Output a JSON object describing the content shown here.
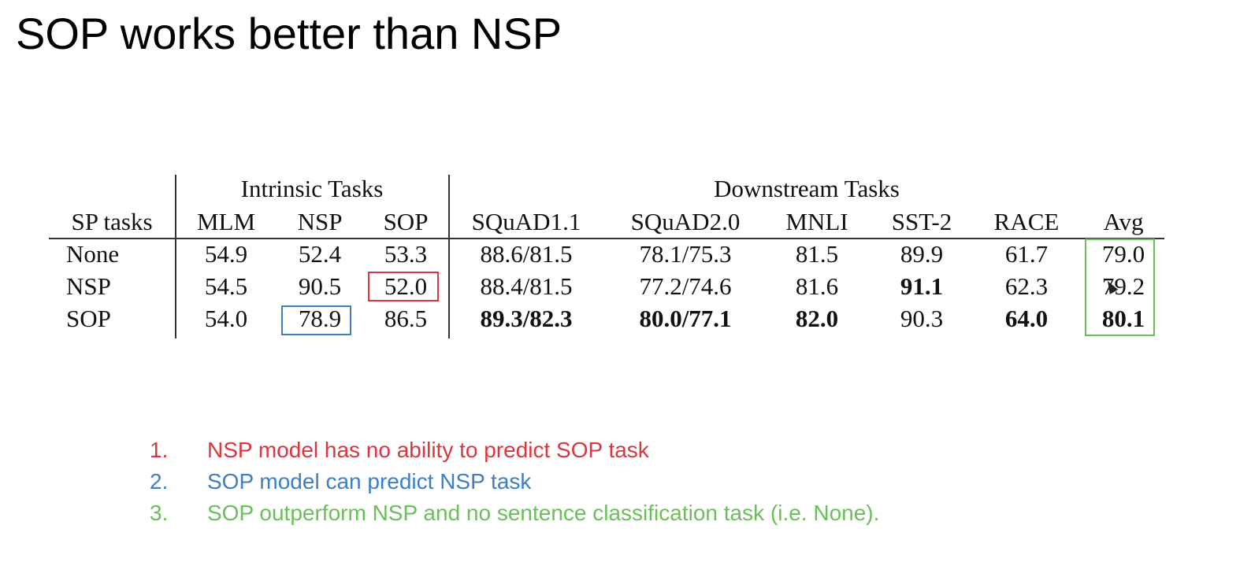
{
  "title": "SOP works better than NSP",
  "table": {
    "group_headers": {
      "intrinsic": "Intrinsic Tasks",
      "downstream": "Downstream Tasks"
    },
    "columns": [
      "SP tasks",
      "MLM",
      "NSP",
      "SOP",
      "SQuAD1.1",
      "SQuAD2.0",
      "MNLI",
      "SST-2",
      "RACE",
      "Avg"
    ],
    "rows": [
      {
        "label": "None",
        "values": [
          "54.9",
          "52.4",
          "53.3",
          "88.6/81.5",
          "78.1/75.3",
          "81.5",
          "89.9",
          "61.7",
          "79.0"
        ],
        "bold": [
          false,
          false,
          false,
          false,
          false,
          false,
          false,
          false,
          false
        ]
      },
      {
        "label": "NSP",
        "values": [
          "54.5",
          "90.5",
          "52.0",
          "88.4/81.5",
          "77.2/74.6",
          "81.6",
          "91.1",
          "62.3",
          "79.2"
        ],
        "bold": [
          false,
          false,
          false,
          false,
          false,
          false,
          true,
          false,
          false
        ]
      },
      {
        "label": "SOP",
        "values": [
          "54.0",
          "78.9",
          "86.5",
          "89.3/82.3",
          "80.0/77.1",
          "82.0",
          "90.3",
          "64.0",
          "80.1"
        ],
        "bold": [
          false,
          false,
          false,
          true,
          true,
          true,
          false,
          true,
          true
        ]
      }
    ]
  },
  "highlight_colors": {
    "red": "#d9363e",
    "blue": "#3b7fc4",
    "green": "#6abf5a"
  },
  "notes": [
    {
      "num": "1.",
      "text": "NSP model has no ability to predict SOP task",
      "color": "#d9363e"
    },
    {
      "num": "2.",
      "text": "SOP model can predict NSP task",
      "color": "#3b7fc4"
    },
    {
      "num": "3.",
      "text": "SOP outperform NSP and no sentence classification task (i.e. None).",
      "color": "#6abf5a"
    }
  ]
}
